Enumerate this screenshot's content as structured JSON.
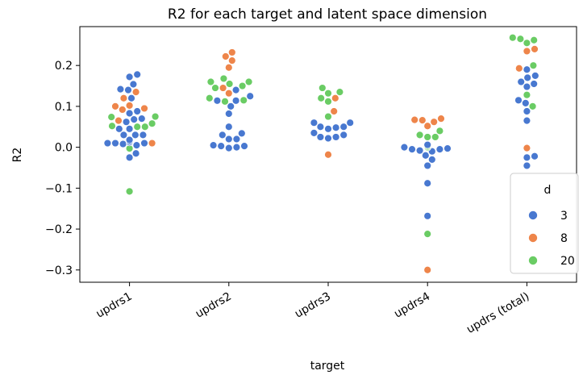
{
  "chart_data": {
    "type": "scatter",
    "subtype": "swarm",
    "title": "R2 for each target and latent space dimension",
    "xlabel": "target",
    "ylabel": "R2",
    "categories": [
      "updrs1",
      "updrs2",
      "updrs3",
      "updrs4",
      "updrs (total)"
    ],
    "ylim": [
      -0.33,
      0.295
    ],
    "yticks": [
      -0.3,
      -0.2,
      -0.1,
      0.0,
      0.1,
      0.2
    ],
    "ytick_labels": [
      "−0.3",
      "−0.2",
      "−0.1",
      "0.0",
      "0.1",
      "0.2"
    ],
    "grid": false,
    "legend": {
      "title": "d",
      "position": "lower-right"
    },
    "series": [
      {
        "name": "3",
        "color": "#4878d0",
        "points": {
          "updrs1": [
            0.178,
            0.172,
            0.154,
            0.142,
            0.14,
            0.12,
            0.088,
            0.083,
            0.07,
            0.068,
            0.062,
            0.045,
            0.045,
            0.03,
            0.03,
            0.03,
            0.018,
            0.015,
            0.015,
            0.012,
            0.01,
            0.01,
            0.01,
            0.008,
            0.005,
            -0.015,
            -0.025
          ],
          "updrs2": [
            0.14,
            0.125,
            0.114,
            0.114,
            0.1,
            0.082,
            0.05,
            0.034,
            0.03,
            0.02,
            0.02,
            0.005,
            0.003,
            0.003,
            0.0,
            -0.002
          ],
          "updrs3": [
            0.06,
            0.06,
            0.05,
            0.05,
            0.048,
            0.045,
            0.035,
            0.03,
            0.025,
            0.025,
            0.022
          ],
          "updrs4": [
            0.006,
            0.0,
            0.0,
            0.0,
            -0.003,
            -0.005,
            -0.005,
            -0.008,
            -0.01,
            -0.02,
            -0.03,
            -0.045,
            -0.088,
            -0.168
          ],
          "updrs (total)": [
            0.19,
            0.175,
            0.17,
            0.16,
            0.155,
            0.148,
            0.115,
            0.108,
            0.088,
            0.065,
            -0.022,
            -0.025,
            -0.045
          ]
        }
      },
      {
        "name": "8",
        "color": "#ee854a",
        "points": {
          "updrs1": [
            0.135,
            0.12,
            0.102,
            0.1,
            0.095,
            0.092,
            0.065,
            0.01
          ],
          "updrs2": [
            0.232,
            0.222,
            0.212,
            0.195,
            0.145,
            0.132
          ],
          "updrs3": [
            0.12,
            0.088,
            -0.018
          ],
          "updrs4": [
            0.07,
            0.067,
            0.066,
            0.062,
            0.052,
            -0.3
          ],
          "updrs (total)": [
            0.24,
            0.235,
            0.193,
            -0.002
          ]
        }
      },
      {
        "name": "20",
        "color": "#6acc64",
        "points": {
          "updrs1": [
            0.075,
            0.074,
            0.058,
            0.052,
            0.05,
            0.05,
            -0.003,
            -0.108
          ],
          "updrs2": [
            0.168,
            0.16,
            0.16,
            0.155,
            0.15,
            0.145,
            0.12,
            0.115,
            0.112
          ],
          "updrs3": [
            0.145,
            0.135,
            0.132,
            0.12,
            0.112,
            0.075
          ],
          "updrs4": [
            0.04,
            0.03,
            0.025,
            0.025,
            0.004,
            0.002,
            0.0,
            -0.212
          ],
          "updrs (total)": [
            0.268,
            0.265,
            0.262,
            0.255,
            0.2,
            0.128,
            0.1
          ]
        }
      }
    ]
  }
}
